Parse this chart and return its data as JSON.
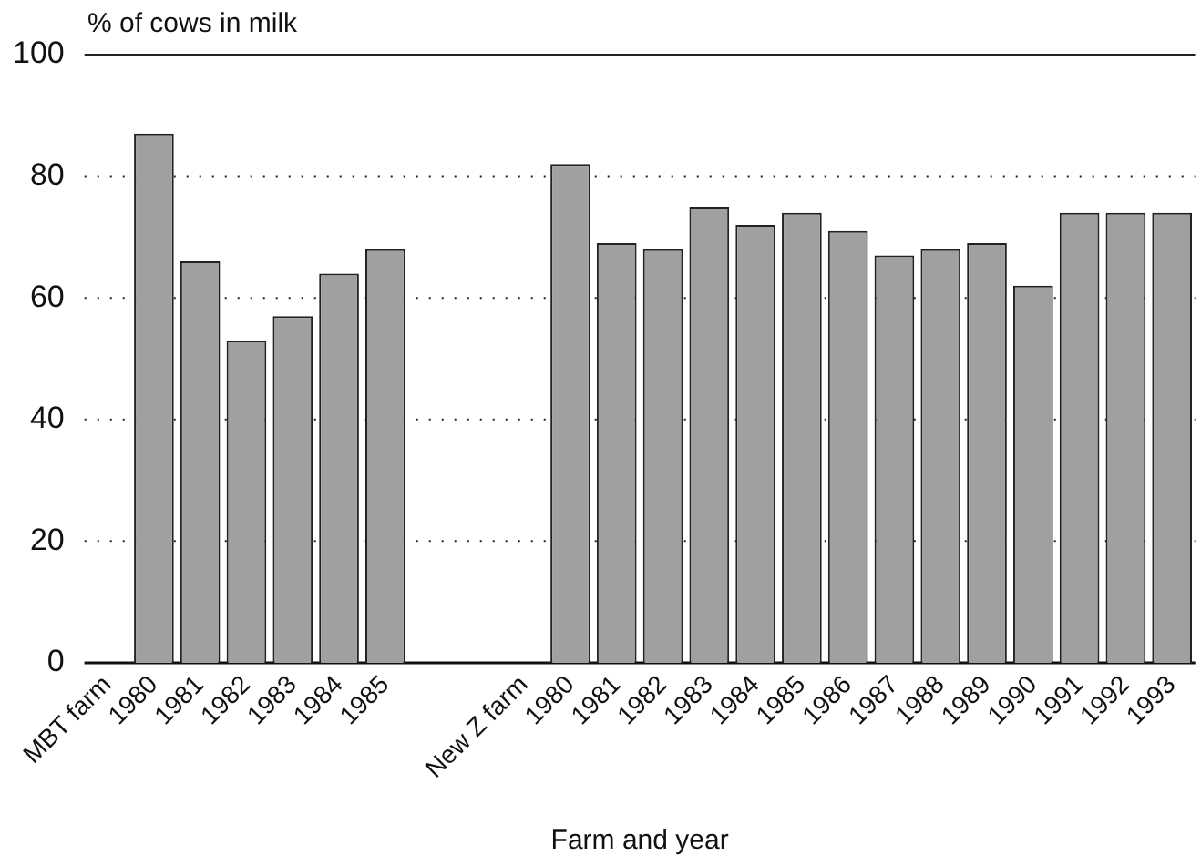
{
  "chart_data": {
    "type": "bar",
    "ylabel": "% of cows in milk",
    "xlabel": "Farm and year",
    "categories": [
      "MBT farm",
      "1980",
      "1981",
      "1982",
      "1983",
      "1984",
      "1985",
      null,
      null,
      "New Z farm",
      "1980",
      "1981",
      "1982",
      "1983",
      "1984",
      "1985",
      "1986",
      "1987",
      "1988",
      "1989",
      "1990",
      "1991",
      "1992",
      "1993"
    ],
    "values": [
      null,
      87,
      66,
      53,
      57,
      64,
      68,
      null,
      null,
      null,
      82,
      69,
      68,
      75,
      72,
      74,
      71,
      67,
      68,
      69,
      62,
      74,
      74,
      74
    ],
    "color": "#a0a0a0",
    "ylim": [
      0,
      100
    ],
    "yticks": [
      0,
      20,
      40,
      60,
      80,
      100
    ],
    "grid": "y",
    "legend": false
  }
}
